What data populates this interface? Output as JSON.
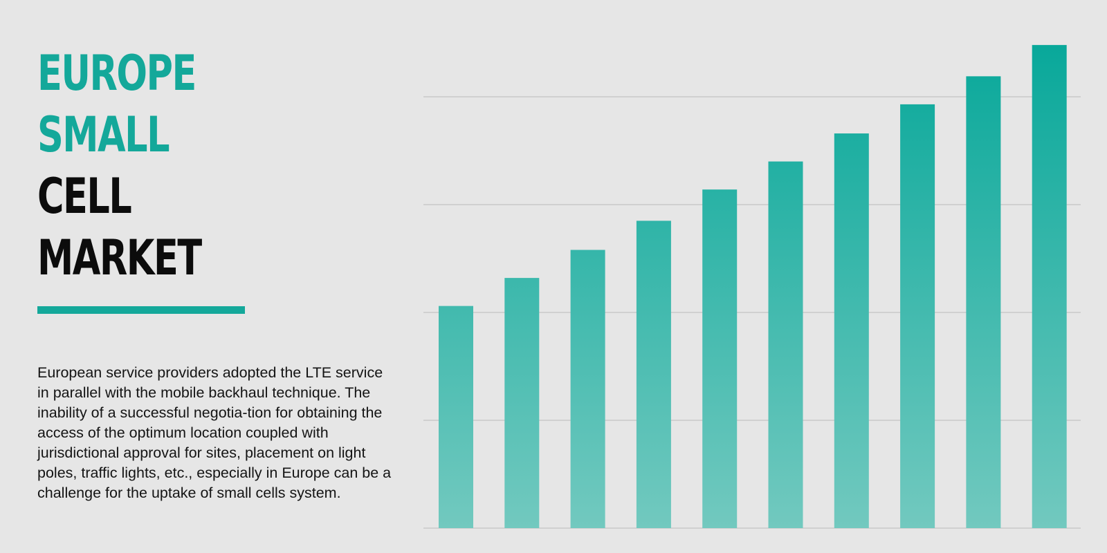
{
  "title": {
    "line1": "EUROPE",
    "line2": "SMALL",
    "line3": "CELL",
    "line4": "MARKET"
  },
  "description": "European service providers adopted the LTE service in parallel with the mobile backhaul technique. The inability of a successful negotia-tion for obtaining the access of the optimum location coupled with jurisdictional approval for sites, placement on light poles, traffic lights, etc., especially in Europe can be a challenge for the uptake of small cells system.",
  "colors": {
    "accent": "#14a89a",
    "bar_top": "#08a89a",
    "bar_bottom": "#72c9bf",
    "grid": "#c8c8c8",
    "background": "#e6e6e6"
  },
  "chart_data": {
    "type": "bar",
    "categories": [
      "",
      "",
      "",
      "",
      "",
      "",
      "",
      "",
      "",
      ""
    ],
    "values": [
      2.06,
      2.32,
      2.58,
      2.85,
      3.14,
      3.4,
      3.66,
      3.93,
      4.19,
      4.48
    ],
    "ylim": [
      0,
      4.5
    ],
    "grid_values": [
      1,
      2,
      3,
      4
    ],
    "grid": true,
    "legend": "none",
    "title": "",
    "xlabel": "",
    "ylabel": ""
  }
}
